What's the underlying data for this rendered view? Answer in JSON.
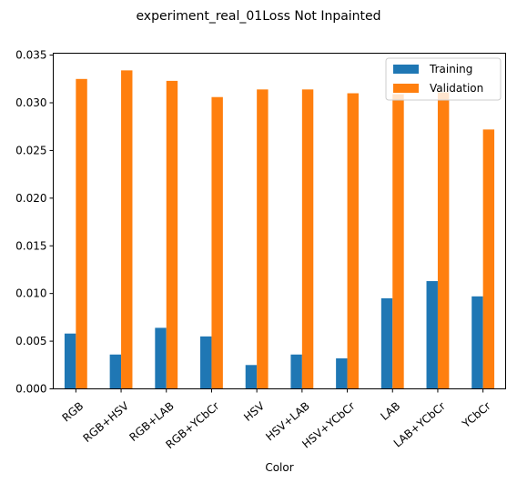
{
  "chart_data": {
    "type": "bar",
    "title": "experiment_real_01Loss Not Inpainted",
    "xlabel": "Color",
    "ylabel": "",
    "ylim": [
      0,
      0.0352
    ],
    "yticks": [
      "0.000",
      "0.005",
      "0.010",
      "0.015",
      "0.020",
      "0.025",
      "0.030",
      "0.035"
    ],
    "categories": [
      "RGB",
      "RGB+HSV",
      "RGB+LAB",
      "RGB+YCbCr",
      "HSV",
      "HSV+LAB",
      "HSV+YCbCr",
      "LAB",
      "LAB+YCbCr",
      "YCbCr"
    ],
    "series": [
      {
        "name": "Training",
        "color": "#1f77b4",
        "values": [
          0.0058,
          0.0036,
          0.0064,
          0.0055,
          0.0025,
          0.0036,
          0.0032,
          0.0095,
          0.0113,
          0.0097
        ]
      },
      {
        "name": "Validation",
        "color": "#ff7f0e",
        "values": [
          0.0325,
          0.0334,
          0.0323,
          0.0306,
          0.0314,
          0.0314,
          0.031,
          0.0309,
          0.0311,
          0.0272
        ]
      }
    ],
    "legend": {
      "position": "top-right"
    },
    "grid": false
  }
}
